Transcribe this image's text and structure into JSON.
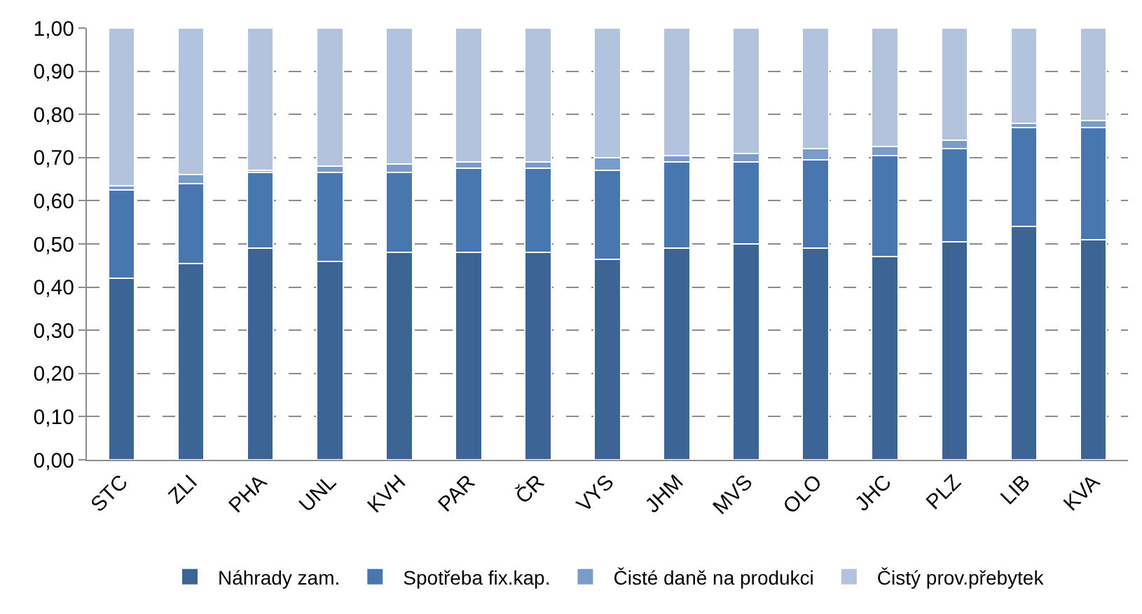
{
  "chart_data": {
    "type": "bar",
    "stacked": true,
    "categories": [
      "STC",
      "ZLI",
      "PHA",
      "UNL",
      "KVH",
      "PAR",
      "ČR",
      "VYS",
      "JHM",
      "MVS",
      "OLO",
      "JHC",
      "PLZ",
      "LIB",
      "KVA"
    ],
    "series": [
      {
        "name": "Náhrady zam.",
        "color": "#3c6596",
        "values": [
          0.42,
          0.455,
          0.49,
          0.46,
          0.48,
          0.48,
          0.48,
          0.465,
          0.49,
          0.5,
          0.49,
          0.47,
          0.505,
          0.54,
          0.51
        ]
      },
      {
        "name": "Spotřeba fix.kap.",
        "color": "#4877b0",
        "values": [
          0.205,
          0.185,
          0.175,
          0.205,
          0.185,
          0.195,
          0.195,
          0.205,
          0.2,
          0.19,
          0.205,
          0.235,
          0.215,
          0.23,
          0.26
        ]
      },
      {
        "name": "Čisté daně na produkci",
        "color": "#7b9bcb",
        "values": [
          0.01,
          0.02,
          0.005,
          0.015,
          0.02,
          0.015,
          0.015,
          0.03,
          0.015,
          0.02,
          0.025,
          0.02,
          0.02,
          0.01,
          0.015
        ]
      },
      {
        "name": "Čistý prov.přebytek",
        "color": "#b3c3de",
        "values": [
          0.365,
          0.34,
          0.33,
          0.32,
          0.315,
          0.31,
          0.31,
          0.3,
          0.295,
          0.29,
          0.28,
          0.275,
          0.26,
          0.22,
          0.215
        ]
      }
    ],
    "ylim": [
      0,
      1
    ],
    "yticks": [
      {
        "value": 0,
        "label": "0,00"
      },
      {
        "value": 0.1,
        "label": "0,10"
      },
      {
        "value": 0.2,
        "label": "0,20"
      },
      {
        "value": 0.3,
        "label": "0,30"
      },
      {
        "value": 0.4,
        "label": "0,40"
      },
      {
        "value": 0.5,
        "label": "0,50"
      },
      {
        "value": 0.6,
        "label": "0,60"
      },
      {
        "value": 0.7,
        "label": "0,70"
      },
      {
        "value": 0.8,
        "label": "0,80"
      },
      {
        "value": 0.9,
        "label": "0,90"
      },
      {
        "value": 1,
        "label": "1,00"
      }
    ],
    "grid": "y",
    "legend": "bottom"
  }
}
